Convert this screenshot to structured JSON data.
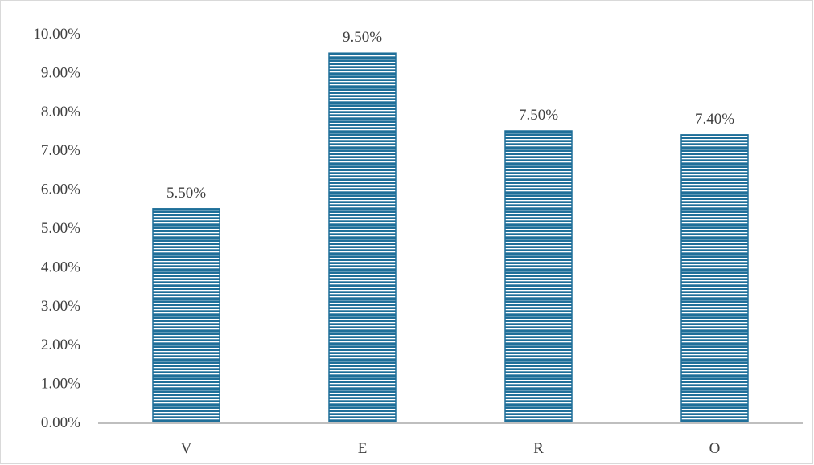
{
  "chart_data": {
    "type": "bar",
    "categories": [
      "V",
      "E",
      "R",
      "O"
    ],
    "values": [
      5.5,
      9.5,
      7.5,
      7.4
    ],
    "data_labels": [
      "5.50%",
      "9.50%",
      "7.50%",
      "7.40%"
    ],
    "y_ticks": [
      "0.00%",
      "1.00%",
      "2.00%",
      "3.00%",
      "4.00%",
      "5.00%",
      "6.00%",
      "7.00%",
      "8.00%",
      "9.00%",
      "10.00%"
    ],
    "ylim": [
      0,
      10
    ],
    "title": "",
    "xlabel": "",
    "ylabel": "",
    "grid": false,
    "legend": "none",
    "colors": {
      "bar_fill": "#1f6f99",
      "bar_stripe": "#ffffff",
      "axis": "#bfbfbf",
      "text": "#404040"
    }
  }
}
